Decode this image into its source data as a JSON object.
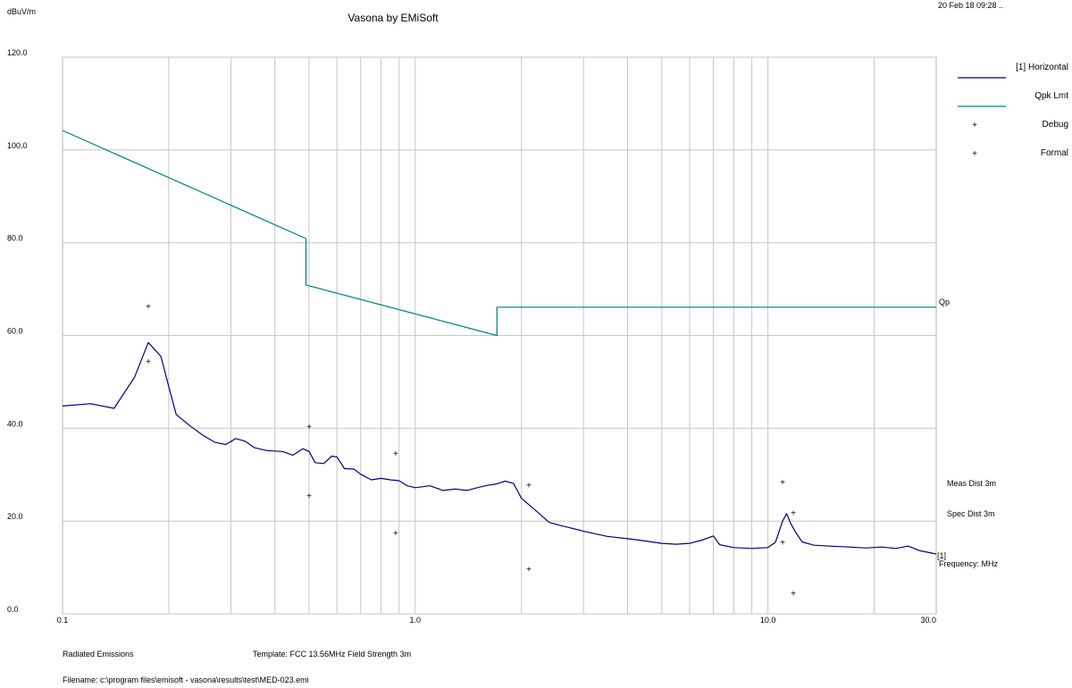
{
  "chart_data": {
    "type": "line",
    "title": "Vasona by EMiSoft",
    "ylabel": "dBuV/m",
    "xlabel": "Frequency: MHz",
    "timestamp": "20 Feb 18 09:28 ..",
    "x_scale": "log",
    "xlim": [
      0.1,
      30.0
    ],
    "ylim": [
      0,
      120
    ],
    "grid": true,
    "legend_position": "right",
    "y_ticks": [
      {
        "value": 0,
        "label": "0.0"
      },
      {
        "value": 20,
        "label": "20.0"
      },
      {
        "value": 40,
        "label": "40.0"
      },
      {
        "value": 60,
        "label": "60.0"
      },
      {
        "value": 80,
        "label": "80.0"
      },
      {
        "value": 100,
        "label": "100.0"
      },
      {
        "value": 120,
        "label": "120.0"
      }
    ],
    "x_ticks": [
      {
        "value": 0.1,
        "label": "0.1"
      },
      {
        "value": 1.0,
        "label": "1.0"
      },
      {
        "value": 10.0,
        "label": "10.0"
      },
      {
        "value": 30.0,
        "label": "30.0"
      }
    ],
    "series": [
      {
        "name": "[1] Horizontal",
        "color": "#000080",
        "style": "line",
        "points": [
          [
            0.1,
            44.8
          ],
          [
            0.12,
            45.3
          ],
          [
            0.14,
            44.3
          ],
          [
            0.16,
            51.0
          ],
          [
            0.175,
            58.5
          ],
          [
            0.19,
            55.5
          ],
          [
            0.2,
            49.0
          ],
          [
            0.21,
            43.0
          ],
          [
            0.23,
            40.5
          ],
          [
            0.25,
            38.5
          ],
          [
            0.27,
            37.0
          ],
          [
            0.29,
            36.5
          ],
          [
            0.31,
            37.8
          ],
          [
            0.33,
            37.2
          ],
          [
            0.35,
            35.8
          ],
          [
            0.38,
            35.2
          ],
          [
            0.42,
            35.0
          ],
          [
            0.45,
            34.2
          ],
          [
            0.48,
            35.6
          ],
          [
            0.5,
            35.0
          ],
          [
            0.52,
            32.6
          ],
          [
            0.55,
            32.4
          ],
          [
            0.58,
            34.0
          ],
          [
            0.6,
            33.8
          ],
          [
            0.63,
            31.3
          ],
          [
            0.67,
            31.2
          ],
          [
            0.7,
            30.1
          ],
          [
            0.75,
            28.9
          ],
          [
            0.8,
            29.2
          ],
          [
            0.85,
            28.9
          ],
          [
            0.9,
            28.7
          ],
          [
            0.95,
            27.6
          ],
          [
            1.0,
            27.2
          ],
          [
            1.1,
            27.6
          ],
          [
            1.2,
            26.6
          ],
          [
            1.3,
            26.9
          ],
          [
            1.4,
            26.6
          ],
          [
            1.5,
            27.2
          ],
          [
            1.6,
            27.7
          ],
          [
            1.7,
            28.0
          ],
          [
            1.8,
            28.6
          ],
          [
            1.9,
            28.1
          ],
          [
            2.0,
            24.9
          ],
          [
            2.2,
            22.2
          ],
          [
            2.4,
            19.7
          ],
          [
            2.6,
            19.0
          ],
          [
            2.8,
            18.4
          ],
          [
            3.0,
            17.8
          ],
          [
            3.5,
            16.7
          ],
          [
            4.0,
            16.2
          ],
          [
            4.5,
            15.7
          ],
          [
            5.0,
            15.2
          ],
          [
            5.5,
            15.0
          ],
          [
            6.0,
            15.2
          ],
          [
            6.5,
            15.9
          ],
          [
            7.0,
            16.8
          ],
          [
            7.3,
            14.9
          ],
          [
            8.0,
            14.3
          ],
          [
            9.0,
            14.1
          ],
          [
            10.0,
            14.3
          ],
          [
            10.5,
            15.4
          ],
          [
            11.0,
            20.0
          ],
          [
            11.3,
            21.6
          ],
          [
            11.6,
            19.5
          ],
          [
            12.0,
            17.5
          ],
          [
            12.5,
            15.5
          ],
          [
            13.5,
            14.8
          ],
          [
            15.0,
            14.6
          ],
          [
            17.0,
            14.4
          ],
          [
            19.0,
            14.2
          ],
          [
            21.0,
            14.4
          ],
          [
            23.0,
            14.1
          ],
          [
            25.0,
            14.6
          ],
          [
            27.0,
            13.6
          ],
          [
            30.0,
            12.9
          ]
        ]
      },
      {
        "name": "Qpk Lmt",
        "color": "#008080",
        "style": "line",
        "end_label": "Qp",
        "points": [
          [
            0.1,
            104.2
          ],
          [
            0.49,
            80.9
          ],
          [
            0.49,
            70.9
          ],
          [
            1.705,
            60.0
          ],
          [
            1.705,
            66.1
          ],
          [
            30.0,
            66.1
          ]
        ]
      },
      {
        "name": "Debug",
        "color": "#b00000",
        "style": "marker",
        "points": [
          [
            0.175,
            66.3
          ],
          [
            0.5,
            40.4
          ],
          [
            0.88,
            34.6
          ],
          [
            2.1,
            27.7
          ],
          [
            11.0,
            28.4
          ],
          [
            11.8,
            21.8
          ]
        ]
      },
      {
        "name": "Formal",
        "color": "#000000",
        "style": "marker",
        "points": [
          [
            0.175,
            54.4
          ],
          [
            0.5,
            25.4
          ],
          [
            0.88,
            17.4
          ],
          [
            2.1,
            9.6
          ],
          [
            11.0,
            15.4
          ],
          [
            11.8,
            4.4
          ]
        ]
      }
    ],
    "annotations": {
      "meas_dist": "Meas Dist 3m",
      "spec_dist": "Spec Dist 3m",
      "trace_marker": "[1]"
    }
  },
  "footer": {
    "test_type": "Radiated Emissions",
    "template": "Template: FCC 13.56MHz Field Strength 3m",
    "filename": "Filename: c:\\program files\\emisoft - vasona\\results\\test\\MED-023.emi"
  }
}
